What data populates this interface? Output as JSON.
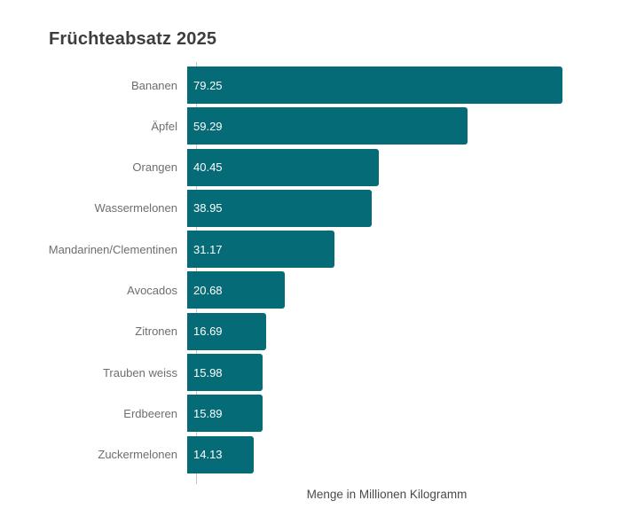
{
  "chart_data": {
    "type": "bar",
    "orientation": "horizontal",
    "title": "Früchteabsatz 2025",
    "xlabel": "Menge in Millionen Kilogramm",
    "ylabel": "",
    "categories": [
      "Bananen",
      "Äpfel",
      "Orangen",
      "Wassermelonen",
      "Mandarinen/Clementinen",
      "Avocados",
      "Zitronen",
      "Trauben weiss",
      "Erdbeeren",
      "Zuckermelonen"
    ],
    "values": [
      79.25,
      59.29,
      40.45,
      38.95,
      31.17,
      20.68,
      16.69,
      15.98,
      15.89,
      14.13
    ],
    "value_labels": [
      "79.25",
      "59.29",
      "40.45",
      "38.95",
      "31.17",
      "20.68",
      "16.69",
      "15.98",
      "15.89",
      "14.13"
    ],
    "xlim": [
      0,
      79.25
    ],
    "grid": false,
    "legend": "none",
    "colors": {
      "bar": "#056b77",
      "title": "#3d3d3d",
      "category_label": "#6e6e6e",
      "value_label": "#ffffff",
      "axis_line": "#c6c6c6",
      "axis_label": "#4a4a4a",
      "background": "#ffffff"
    }
  }
}
